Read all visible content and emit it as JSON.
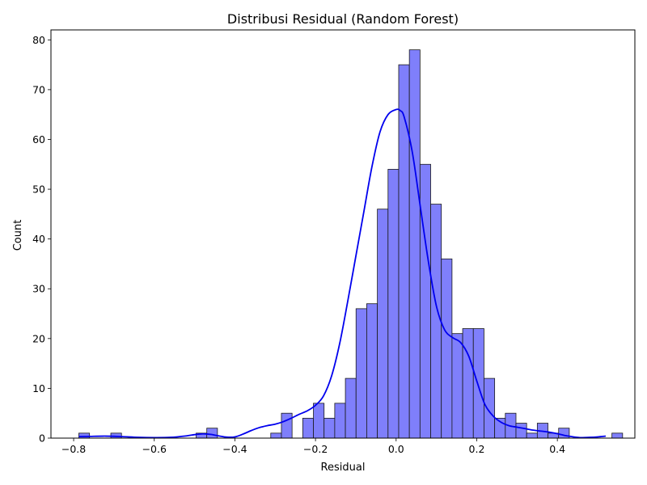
{
  "chart_data": {
    "type": "bar",
    "title": "Distribusi Residual (Random Forest)",
    "xlabel": "Residual",
    "ylabel": "Count",
    "xlim": [
      -0.8563,
      0.5923
    ],
    "ylim": [
      0,
      82
    ],
    "xticks": [
      -0.8,
      -0.6,
      -0.4,
      -0.2,
      0.0,
      0.2,
      0.4
    ],
    "xtick_labels": [
      "−0.8",
      "−0.6",
      "−0.4",
      "−0.2",
      "0.0",
      "0.2",
      "0.4"
    ],
    "yticks": [
      0,
      10,
      20,
      30,
      40,
      50,
      60,
      70,
      80
    ],
    "ytick_labels": [
      "0",
      "10",
      "20",
      "30",
      "40",
      "50",
      "60",
      "70",
      "80"
    ],
    "bins": {
      "start": -0.7871,
      "width": 0.02645
    },
    "values": [
      1,
      0,
      0,
      1,
      0,
      0,
      0,
      0,
      0,
      0,
      0,
      1,
      2,
      0,
      0,
      0,
      0,
      0,
      1,
      5,
      0,
      4,
      7,
      4,
      7,
      12,
      26,
      27,
      46,
      54,
      75,
      78,
      55,
      47,
      36,
      21,
      22,
      22,
      12,
      4,
      5,
      3,
      1,
      3,
      1,
      2,
      0,
      0,
      0,
      0,
      1
    ],
    "kde": {
      "x": [
        -0.787,
        -0.76,
        -0.72,
        -0.68,
        -0.64,
        -0.6,
        -0.56,
        -0.52,
        -0.5,
        -0.48,
        -0.46,
        -0.44,
        -0.42,
        -0.4,
        -0.38,
        -0.36,
        -0.34,
        -0.32,
        -0.3,
        -0.28,
        -0.26,
        -0.24,
        -0.22,
        -0.2,
        -0.18,
        -0.16,
        -0.14,
        -0.12,
        -0.1,
        -0.08,
        -0.06,
        -0.04,
        -0.02,
        0.0,
        0.01,
        0.02,
        0.04,
        0.06,
        0.08,
        0.1,
        0.12,
        0.14,
        0.16,
        0.18,
        0.2,
        0.22,
        0.24,
        0.26,
        0.28,
        0.3,
        0.32,
        0.34,
        0.36,
        0.38,
        0.4,
        0.42,
        0.44,
        0.46,
        0.48,
        0.5,
        0.52
      ],
      "y": [
        0.3,
        0.35,
        0.4,
        0.3,
        0.15,
        0.1,
        0.15,
        0.45,
        0.7,
        0.85,
        0.75,
        0.45,
        0.2,
        0.25,
        0.8,
        1.5,
        2.1,
        2.5,
        2.8,
        3.3,
        4.0,
        4.8,
        5.5,
        6.6,
        8.5,
        12.5,
        19.0,
        27.5,
        36.5,
        45.5,
        54.5,
        61.5,
        65.0,
        66.0,
        65.8,
        64.5,
        57.5,
        46.5,
        35.5,
        26.5,
        21.8,
        20.2,
        19.2,
        16.5,
        11.5,
        6.8,
        4.5,
        3.2,
        2.5,
        2.2,
        1.9,
        1.6,
        1.4,
        1.2,
        0.9,
        0.5,
        0.25,
        0.1,
        0.15,
        0.25,
        0.4
      ]
    },
    "colors": {
      "bar_fill": "#7f7ffb",
      "bar_edge": "#1a1a1a",
      "kde_line": "#0000ee"
    },
    "grid": false,
    "legend": "none"
  }
}
